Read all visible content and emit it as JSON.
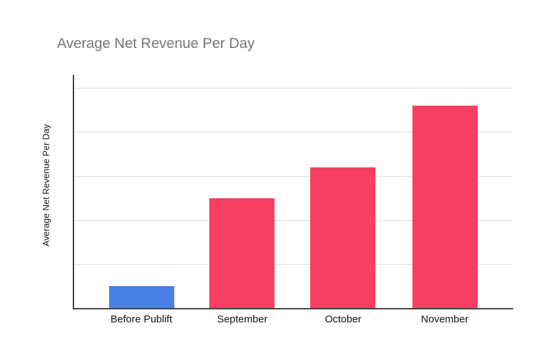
{
  "chart_data": {
    "type": "bar",
    "title": "Average Net Revenue Per Day",
    "ylabel": "Average Net Revenue Per Day",
    "xlabel": "",
    "categories": [
      "Before Publift",
      "September",
      "October",
      "November"
    ],
    "values": [
      0.5,
      2.5,
      3.2,
      4.6
    ],
    "bar_colors": [
      "#4b80e6",
      "#f93e63",
      "#f93e63",
      "#f93e63"
    ],
    "ylim": [
      0,
      5.3
    ],
    "gridline_interval": 1,
    "y_tick_labels_visible": false,
    "grid": true,
    "legend": false,
    "colors": {
      "highlight_bar": "#4b80e6",
      "default_bar": "#f93e63",
      "title_text": "#757575",
      "axis_line": "#424242",
      "gridline": "#e0e0e0",
      "label_text": "#111111",
      "background": "#ffffff"
    }
  }
}
